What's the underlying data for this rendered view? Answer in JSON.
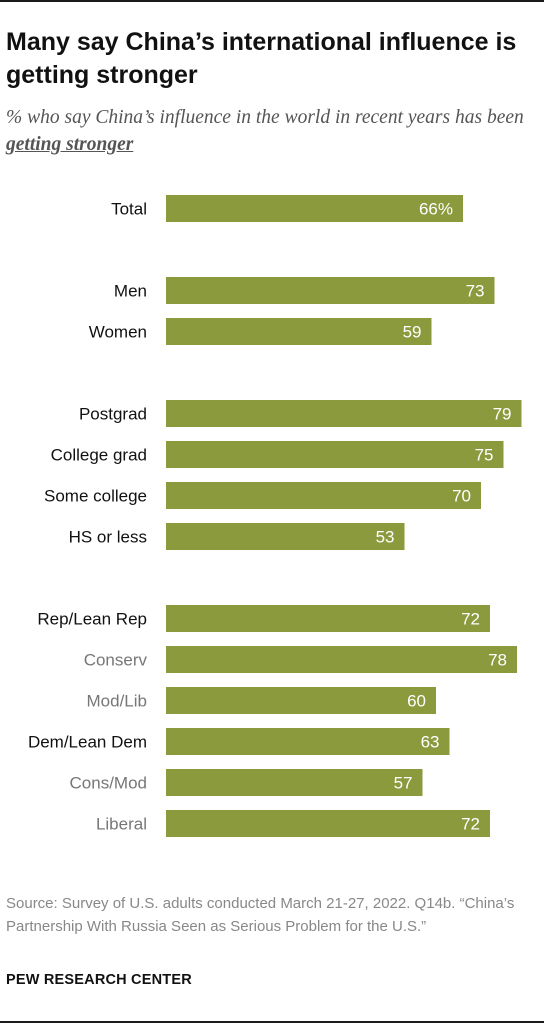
{
  "header": {
    "title": "Many say China’s international influence is getting stronger",
    "subtitle_prefix": "% who say China’s influence in the world in recent years has been ",
    "subtitle_emphasis": "getting stronger"
  },
  "chart_data": {
    "type": "bar",
    "orientation": "horizontal",
    "categories": [
      "Total",
      "Men",
      "Women",
      "Postgrad",
      "College grad",
      "Some college",
      "HS or less",
      "Rep/Lean Rep",
      "Conserv",
      "Mod/Lib",
      "Dem/Lean Dem",
      "Cons/Mod",
      "Liberal"
    ],
    "values": [
      66,
      73,
      59,
      79,
      75,
      70,
      53,
      72,
      78,
      60,
      63,
      57,
      72
    ],
    "value_labels": [
      "66%",
      "73",
      "59",
      "79",
      "75",
      "70",
      "53",
      "72",
      "78",
      "60",
      "63",
      "57",
      "72"
    ],
    "category_emphasis": [
      "primary",
      "primary",
      "primary",
      "primary",
      "primary",
      "primary",
      "primary",
      "primary",
      "secondary",
      "secondary",
      "primary",
      "secondary",
      "secondary"
    ],
    "groups": [
      [
        "Total"
      ],
      [
        "Men",
        "Women"
      ],
      [
        "Postgrad",
        "College grad",
        "Some college",
        "HS or less"
      ],
      [
        "Rep/Lean Rep",
        "Conserv",
        "Mod/Lib",
        "Dem/Lean Dem",
        "Cons/Mod",
        "Liberal"
      ]
    ],
    "xlim": [
      0,
      100
    ],
    "bar_color": "#8c9a3e",
    "label_color": "#ffffff",
    "category_color_primary": "#111111",
    "category_color_secondary": "#777777",
    "title": "Many say China’s international influence is getting stronger",
    "xlabel": "",
    "ylabel": "",
    "grid": false,
    "legend": "none"
  },
  "footer": {
    "source": "Source: Survey of U.S. adults conducted March 21-27, 2022. Q14b. “China’s Partnership With Russia Seen as Serious Problem for the U.S.”",
    "credit": "PEW RESEARCH CENTER"
  }
}
